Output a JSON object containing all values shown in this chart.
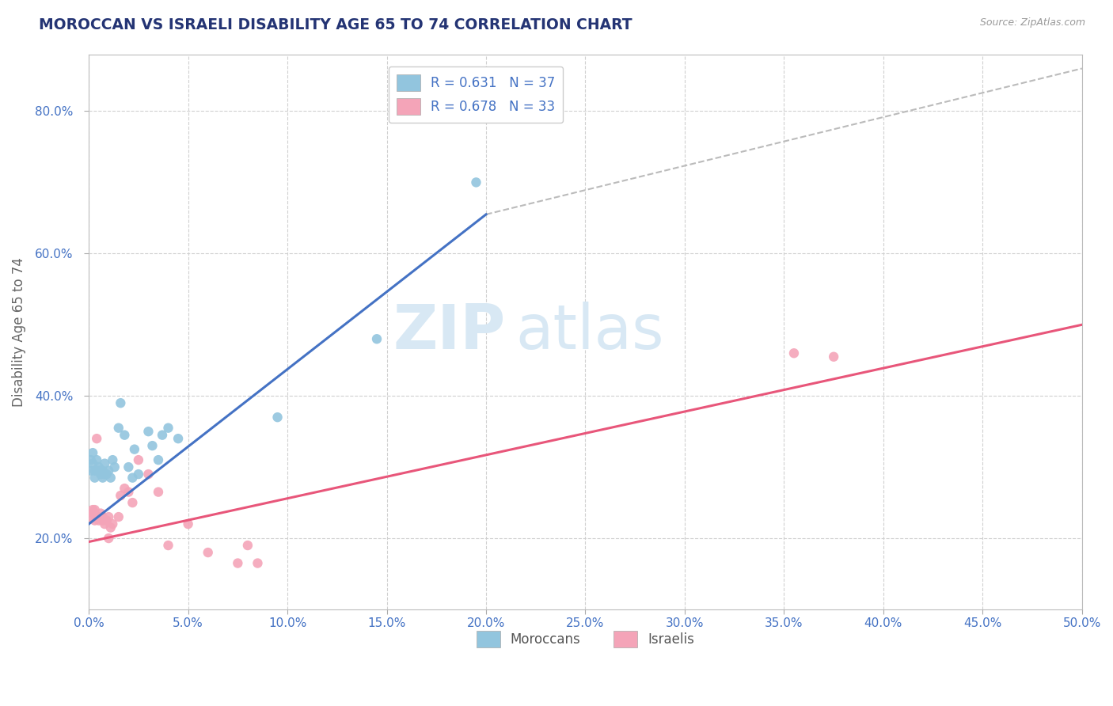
{
  "title": "MOROCCAN VS ISRAELI DISABILITY AGE 65 TO 74 CORRELATION CHART",
  "source_text": "Source: ZipAtlas.com",
  "ylabel": "Disability Age 65 to 74",
  "xlim": [
    0.0,
    0.5
  ],
  "ylim": [
    0.1,
    0.88
  ],
  "xtick_labels": [
    "0.0%",
    "5.0%",
    "10.0%",
    "15.0%",
    "20.0%",
    "25.0%",
    "30.0%",
    "35.0%",
    "40.0%",
    "45.0%",
    "50.0%"
  ],
  "xtick_values": [
    0.0,
    0.05,
    0.1,
    0.15,
    0.2,
    0.25,
    0.3,
    0.35,
    0.4,
    0.45,
    0.5
  ],
  "ytick_labels": [
    "20.0%",
    "40.0%",
    "60.0%",
    "80.0%"
  ],
  "ytick_values": [
    0.2,
    0.4,
    0.6,
    0.8
  ],
  "legend_moroccan_label": "R = 0.631   N = 37",
  "legend_israeli_label": "R = 0.678   N = 33",
  "moroccan_color": "#92c5de",
  "israeli_color": "#f4a4b8",
  "moroccan_line_color": "#4472c4",
  "israeli_line_color": "#e8567a",
  "trend_line_color": "#bbbbbb",
  "background_color": "#ffffff",
  "grid_color": "#d0d0d0",
  "title_color": "#243474",
  "axis_label_color": "#4472c4",
  "watermark_zip": "ZIP",
  "watermark_atlas": "atlas",
  "watermark_color": "#d8e8f4",
  "moroccan_points": [
    [
      0.001,
      0.295
    ],
    [
      0.001,
      0.31
    ],
    [
      0.002,
      0.305
    ],
    [
      0.002,
      0.32
    ],
    [
      0.003,
      0.285
    ],
    [
      0.003,
      0.295
    ],
    [
      0.004,
      0.295
    ],
    [
      0.004,
      0.31
    ],
    [
      0.005,
      0.3
    ],
    [
      0.005,
      0.295
    ],
    [
      0.006,
      0.29
    ],
    [
      0.006,
      0.295
    ],
    [
      0.007,
      0.285
    ],
    [
      0.007,
      0.295
    ],
    [
      0.008,
      0.29
    ],
    [
      0.008,
      0.305
    ],
    [
      0.009,
      0.29
    ],
    [
      0.01,
      0.295
    ],
    [
      0.011,
      0.285
    ],
    [
      0.012,
      0.31
    ],
    [
      0.013,
      0.3
    ],
    [
      0.015,
      0.355
    ],
    [
      0.016,
      0.39
    ],
    [
      0.018,
      0.345
    ],
    [
      0.02,
      0.3
    ],
    [
      0.022,
      0.285
    ],
    [
      0.023,
      0.325
    ],
    [
      0.025,
      0.29
    ],
    [
      0.03,
      0.35
    ],
    [
      0.032,
      0.33
    ],
    [
      0.035,
      0.31
    ],
    [
      0.037,
      0.345
    ],
    [
      0.04,
      0.355
    ],
    [
      0.045,
      0.34
    ],
    [
      0.095,
      0.37
    ],
    [
      0.145,
      0.48
    ],
    [
      0.195,
      0.7
    ]
  ],
  "israeli_points": [
    [
      0.001,
      0.23
    ],
    [
      0.002,
      0.235
    ],
    [
      0.002,
      0.24
    ],
    [
      0.003,
      0.225
    ],
    [
      0.003,
      0.24
    ],
    [
      0.004,
      0.34
    ],
    [
      0.005,
      0.23
    ],
    [
      0.005,
      0.225
    ],
    [
      0.006,
      0.235
    ],
    [
      0.007,
      0.23
    ],
    [
      0.007,
      0.225
    ],
    [
      0.008,
      0.22
    ],
    [
      0.009,
      0.225
    ],
    [
      0.01,
      0.23
    ],
    [
      0.01,
      0.2
    ],
    [
      0.011,
      0.215
    ],
    [
      0.012,
      0.22
    ],
    [
      0.015,
      0.23
    ],
    [
      0.016,
      0.26
    ],
    [
      0.018,
      0.27
    ],
    [
      0.02,
      0.265
    ],
    [
      0.022,
      0.25
    ],
    [
      0.025,
      0.31
    ],
    [
      0.03,
      0.29
    ],
    [
      0.035,
      0.265
    ],
    [
      0.04,
      0.19
    ],
    [
      0.05,
      0.22
    ],
    [
      0.06,
      0.18
    ],
    [
      0.075,
      0.165
    ],
    [
      0.08,
      0.19
    ],
    [
      0.085,
      0.165
    ],
    [
      0.355,
      0.46
    ],
    [
      0.375,
      0.455
    ]
  ],
  "moroccan_line_x": [
    0.0,
    0.2
  ],
  "moroccan_line_y": [
    0.22,
    0.655
  ],
  "israeli_line_x": [
    0.0,
    0.5
  ],
  "israeli_line_y": [
    0.195,
    0.5
  ],
  "dashed_line_x": [
    0.2,
    0.5
  ],
  "dashed_line_y": [
    0.655,
    0.86
  ]
}
